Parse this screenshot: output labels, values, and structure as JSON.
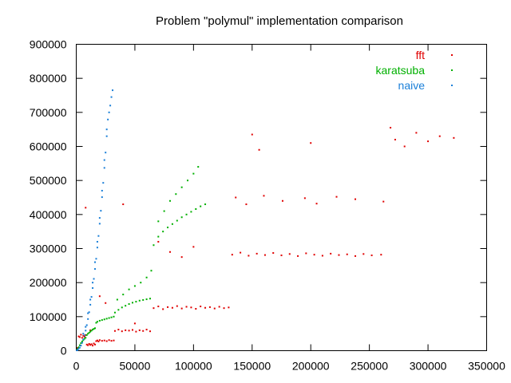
{
  "chart_data": {
    "type": "scatter",
    "title": "Problem \"polymul\" implementation comparison",
    "xlabel": "",
    "ylabel": "",
    "xlim": [
      0,
      350000
    ],
    "ylim": [
      0,
      900000
    ],
    "x_ticks": [
      0,
      50000,
      100000,
      150000,
      200000,
      250000,
      300000,
      350000
    ],
    "y_ticks": [
      0,
      100000,
      200000,
      300000,
      400000,
      500000,
      600000,
      700000,
      800000,
      900000
    ],
    "x_tick_labels": [
      "0",
      "50000",
      "100000",
      "150000",
      "200000",
      "250000",
      "300000",
      "350000"
    ],
    "y_tick_labels": [
      "0",
      "100000",
      "200000",
      "300000",
      "400000",
      "500000",
      "600000",
      "700000",
      "800000",
      "900000"
    ],
    "grid": false,
    "legend_position": "top-right",
    "series": [
      {
        "name": "fft",
        "color": "#e00000",
        "points": [
          [
            1000,
            8000
          ],
          [
            2000,
            42000
          ],
          [
            3000,
            40000
          ],
          [
            4000,
            47000
          ],
          [
            5000,
            38000
          ],
          [
            6000,
            44000
          ],
          [
            7000,
            41000
          ],
          [
            8000,
            46000
          ],
          [
            9000,
            18000
          ],
          [
            10000,
            16000
          ],
          [
            11000,
            20000
          ],
          [
            12000,
            17000
          ],
          [
            13000,
            19000
          ],
          [
            14000,
            15000
          ],
          [
            15000,
            21000
          ],
          [
            16000,
            18000
          ],
          [
            17000,
            28000
          ],
          [
            18000,
            30000
          ],
          [
            19000,
            27000
          ],
          [
            20000,
            31000
          ],
          [
            22000,
            29000
          ],
          [
            24000,
            30000
          ],
          [
            26000,
            28000
          ],
          [
            28000,
            31000
          ],
          [
            30000,
            29000
          ],
          [
            32000,
            30000
          ],
          [
            33000,
            58000
          ],
          [
            36000,
            62000
          ],
          [
            39000,
            57000
          ],
          [
            42000,
            60000
          ],
          [
            45000,
            59000
          ],
          [
            48000,
            61000
          ],
          [
            51000,
            56000
          ],
          [
            54000,
            60000
          ],
          [
            57000,
            58000
          ],
          [
            60000,
            62000
          ],
          [
            63000,
            57000
          ],
          [
            66000,
            125000
          ],
          [
            70000,
            130000
          ],
          [
            74000,
            122000
          ],
          [
            78000,
            128000
          ],
          [
            82000,
            126000
          ],
          [
            86000,
            131000
          ],
          [
            90000,
            124000
          ],
          [
            94000,
            129000
          ],
          [
            98000,
            127000
          ],
          [
            102000,
            123000
          ],
          [
            106000,
            130000
          ],
          [
            110000,
            126000
          ],
          [
            114000,
            128000
          ],
          [
            118000,
            124000
          ],
          [
            122000,
            129000
          ],
          [
            126000,
            125000
          ],
          [
            130000,
            127000
          ],
          [
            133000,
            282000
          ],
          [
            140000,
            288000
          ],
          [
            147000,
            279000
          ],
          [
            154000,
            285000
          ],
          [
            161000,
            281000
          ],
          [
            168000,
            287000
          ],
          [
            175000,
            280000
          ],
          [
            182000,
            284000
          ],
          [
            189000,
            278000
          ],
          [
            196000,
            286000
          ],
          [
            203000,
            282000
          ],
          [
            210000,
            279000
          ],
          [
            217000,
            285000
          ],
          [
            224000,
            281000
          ],
          [
            231000,
            283000
          ],
          [
            238000,
            278000
          ],
          [
            245000,
            284000
          ],
          [
            252000,
            280000
          ],
          [
            260000,
            282000
          ],
          [
            136000,
            450000
          ],
          [
            145000,
            430000
          ],
          [
            160000,
            455000
          ],
          [
            176000,
            440000
          ],
          [
            195000,
            448000
          ],
          [
            205000,
            432000
          ],
          [
            222000,
            452000
          ],
          [
            238000,
            445000
          ],
          [
            262000,
            438000
          ],
          [
            150000,
            635000
          ],
          [
            156000,
            590000
          ],
          [
            200000,
            610000
          ],
          [
            268000,
            655000
          ],
          [
            272000,
            620000
          ],
          [
            280000,
            600000
          ],
          [
            290000,
            640000
          ],
          [
            300000,
            615000
          ],
          [
            310000,
            630000
          ],
          [
            322000,
            625000
          ],
          [
            70000,
            320000
          ],
          [
            80000,
            290000
          ],
          [
            90000,
            275000
          ],
          [
            100000,
            305000
          ],
          [
            20000,
            160000
          ],
          [
            25000,
            140000
          ],
          [
            8000,
            420000
          ],
          [
            40000,
            430000
          ],
          [
            12000,
            60000
          ],
          [
            50000,
            80000
          ]
        ]
      },
      {
        "name": "karatsuba",
        "color": "#00b000",
        "points": [
          [
            1000,
            5000
          ],
          [
            2000,
            10000
          ],
          [
            3000,
            16000
          ],
          [
            4000,
            22000
          ],
          [
            5000,
            27000
          ],
          [
            6000,
            31000
          ],
          [
            7000,
            35000
          ],
          [
            8000,
            38000
          ],
          [
            9000,
            46000
          ],
          [
            10000,
            50000
          ],
          [
            11000,
            53000
          ],
          [
            12000,
            56000
          ],
          [
            13000,
            59000
          ],
          [
            14000,
            62000
          ],
          [
            15000,
            64000
          ],
          [
            16000,
            66000
          ],
          [
            17000,
            82000
          ],
          [
            18000,
            85000
          ],
          [
            20000,
            88000
          ],
          [
            22000,
            90000
          ],
          [
            24000,
            92000
          ],
          [
            26000,
            94000
          ],
          [
            28000,
            96000
          ],
          [
            30000,
            98000
          ],
          [
            32000,
            100000
          ],
          [
            33000,
            112000
          ],
          [
            36000,
            120000
          ],
          [
            39000,
            127000
          ],
          [
            42000,
            132000
          ],
          [
            45000,
            137000
          ],
          [
            48000,
            141000
          ],
          [
            51000,
            144000
          ],
          [
            54000,
            147000
          ],
          [
            57000,
            149000
          ],
          [
            60000,
            151000
          ],
          [
            63000,
            153000
          ],
          [
            35000,
            150000
          ],
          [
            40000,
            165000
          ],
          [
            45000,
            180000
          ],
          [
            50000,
            190000
          ],
          [
            55000,
            200000
          ],
          [
            60000,
            215000
          ],
          [
            64000,
            235000
          ],
          [
            66000,
            310000
          ],
          [
            70000,
            335000
          ],
          [
            74000,
            350000
          ],
          [
            78000,
            362000
          ],
          [
            82000,
            372000
          ],
          [
            86000,
            382000
          ],
          [
            90000,
            392000
          ],
          [
            94000,
            400000
          ],
          [
            98000,
            408000
          ],
          [
            102000,
            416000
          ],
          [
            106000,
            424000
          ],
          [
            110000,
            430000
          ],
          [
            70000,
            380000
          ],
          [
            75000,
            410000
          ],
          [
            80000,
            440000
          ],
          [
            85000,
            460000
          ],
          [
            90000,
            480000
          ],
          [
            95000,
            500000
          ],
          [
            100000,
            520000
          ],
          [
            104000,
            540000
          ]
        ]
      },
      {
        "name": "naive",
        "color": "#1a7fd8",
        "points": [
          [
            500,
            1000
          ],
          [
            1000,
            2000
          ],
          [
            2000,
            5000
          ],
          [
            3000,
            9000
          ],
          [
            4000,
            15000
          ],
          [
            5000,
            23000
          ],
          [
            6000,
            33000
          ],
          [
            7000,
            45000
          ],
          [
            8000,
            59000
          ],
          [
            9000,
            75000
          ],
          [
            10000,
            93000
          ],
          [
            11000,
            113000
          ],
          [
            12000,
            135000
          ],
          [
            13000,
            158000
          ],
          [
            14000,
            184000
          ],
          [
            15000,
            211000
          ],
          [
            16000,
            240000
          ],
          [
            17000,
            270000
          ],
          [
            18000,
            303000
          ],
          [
            19000,
            337000
          ],
          [
            20000,
            373000
          ],
          [
            21000,
            411000
          ],
          [
            22000,
            451000
          ],
          [
            23000,
            493000
          ],
          [
            24000,
            537000
          ],
          [
            25000,
            582000
          ],
          [
            26000,
            630000
          ],
          [
            27000,
            679000
          ],
          [
            28000,
            700000
          ],
          [
            29000,
            720000
          ],
          [
            30000,
            745000
          ],
          [
            31000,
            765000
          ],
          [
            6000,
            50000
          ],
          [
            8000,
            70000
          ],
          [
            10000,
            110000
          ],
          [
            12000,
            150000
          ],
          [
            14000,
            200000
          ],
          [
            16000,
            260000
          ],
          [
            18000,
            320000
          ],
          [
            20000,
            390000
          ],
          [
            22000,
            470000
          ],
          [
            24000,
            560000
          ],
          [
            26000,
            650000
          ]
        ]
      }
    ]
  }
}
